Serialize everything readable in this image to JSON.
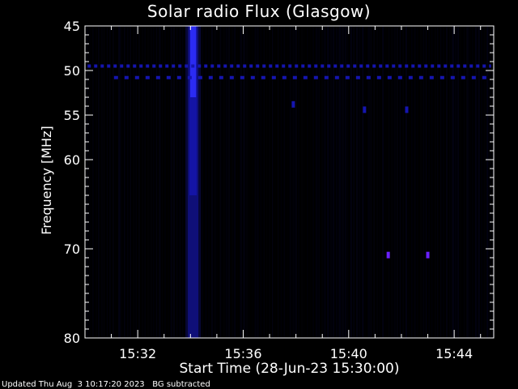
{
  "chart_data": {
    "type": "heatmap",
    "title": "Solar radio Flux (Glasgow)",
    "xlabel": "Start Time (28-Jun-23 15:30:00)",
    "ylabel": "Frequency [MHz]",
    "x_unit": "minutes after 15:30:00",
    "xlim": [
      0,
      15.5
    ],
    "x_ticks": [
      {
        "value": 2,
        "label": "15:32"
      },
      {
        "value": 6,
        "label": "15:36"
      },
      {
        "value": 10,
        "label": "15:40"
      },
      {
        "value": 14,
        "label": "15:44"
      }
    ],
    "ylim": [
      45,
      80
    ],
    "y_ticks": [
      {
        "value": 45,
        "label": "45"
      },
      {
        "value": 50,
        "label": "50"
      },
      {
        "value": 55,
        "label": "55"
      },
      {
        "value": 60,
        "label": "60"
      },
      {
        "value": 70,
        "label": "70"
      },
      {
        "value": 80,
        "label": "80"
      }
    ],
    "burst": {
      "time_start": 3.9,
      "time_end": 4.3,
      "freq_min": 45,
      "freq_max": 80
    },
    "interference_bands": [
      {
        "freq": 49.5,
        "time_start": 0.1,
        "time_end": 15.4,
        "pattern": "dashed"
      },
      {
        "freq": 50.8,
        "time_start": 1.1,
        "time_end": 15.4,
        "pattern": "dashed"
      }
    ],
    "spots": [
      {
        "time": 7.9,
        "freq": 53.8
      },
      {
        "time": 10.6,
        "freq": 54.4
      },
      {
        "time": 12.2,
        "freq": 54.4
      },
      {
        "time": 11.5,
        "freq": 70.7
      },
      {
        "time": 13.0,
        "freq": 70.7
      }
    ],
    "colors": {
      "background": "#000000",
      "faint": "#08083a",
      "medium": "#1515b0",
      "bright": "#2f2fff",
      "spot": "#6a20ff"
    }
  },
  "footer": "Updated Thu Aug  3 10:17:20 2023   BG subtracted"
}
